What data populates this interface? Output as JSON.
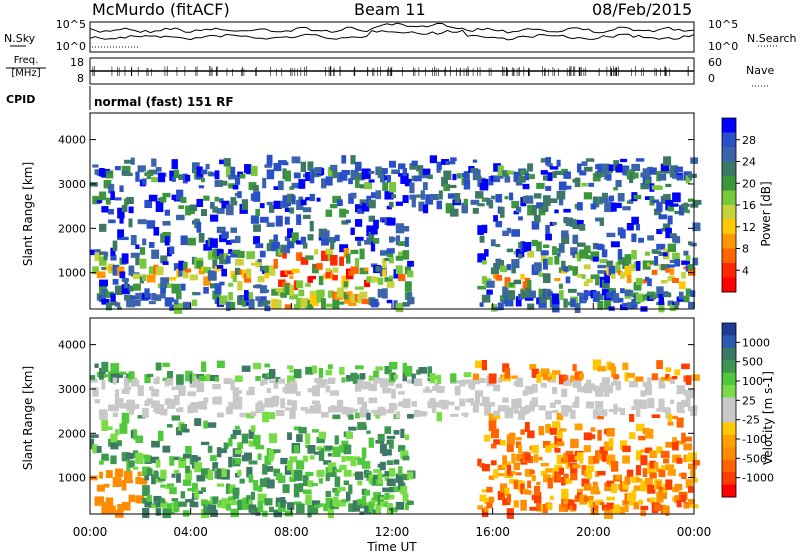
{
  "header": {
    "station_title": "McMurdo (fitACF)",
    "beam_label": "Beam 11",
    "date_label": "08/Feb/2015"
  },
  "top_panels": {
    "nsky_label": "N.Sky",
    "nsearch_label": "N.Search",
    "noise_ticks_left": [
      "10^5",
      "10^0"
    ],
    "noise_ticks_right": [
      "10^5",
      "10^0"
    ],
    "freq_label_line1": "Freq.",
    "freq_label_line2": "[MHz]",
    "freq_ticks": [
      "18",
      "8"
    ],
    "nave_label": "Nave",
    "nave_ticks": [
      "60",
      "0"
    ],
    "cpid_label": "CPID",
    "cpid_text": "normal (fast) 151 RF"
  },
  "chart_data": [
    {
      "type": "heatmap",
      "name": "power",
      "ylabel": "Slant Range [km]",
      "y_ticks": [
        "1000",
        "2000",
        "3000",
        "4000"
      ],
      "ylim": [
        180,
        4600
      ],
      "xlim": [
        0,
        24
      ],
      "colorbar": {
        "label": "Power [dB]",
        "ticks": [
          "4",
          "8",
          "12",
          "16",
          "20",
          "24",
          "28"
        ],
        "colors": [
          "#0000ff",
          "#2a50c8",
          "#3c64aa",
          "#3c7864",
          "#3c963c",
          "#78c83c",
          "#c8d23c",
          "#ffc800",
          "#ff9600",
          "#ff6400",
          "#ff2800",
          "#ff0000"
        ]
      }
    },
    {
      "type": "heatmap",
      "name": "velocity",
      "ylabel": "Slant Range [km]",
      "y_ticks": [
        "1000",
        "2000",
        "3000",
        "4000"
      ],
      "ylim": [
        180,
        4600
      ],
      "xlim": [
        0,
        24
      ],
      "colorbar": {
        "label": "Velocity [m s-1]",
        "ticks": [
          "1000",
          "500",
          "100",
          "25",
          "-25",
          "-100",
          "-500",
          "-1000"
        ],
        "colors": [
          "#1e3c96",
          "#2d5aaf",
          "#3c7864",
          "#3c9650",
          "#50c83c",
          "#78dc46",
          "#c8c8c8",
          "#c8c8c8",
          "#ffc800",
          "#ffa000",
          "#ff8c00",
          "#ff6400",
          "#ff3c00",
          "#ff0000"
        ]
      }
    }
  ],
  "x_axis": {
    "ticks": [
      "00:00",
      "04:00",
      "08:00",
      "12:00",
      "16:00",
      "20:00",
      "00:00"
    ],
    "label": "Time UT"
  }
}
